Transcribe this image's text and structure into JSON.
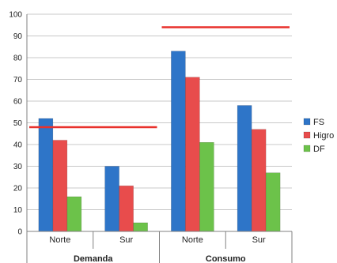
{
  "chart_data": {
    "type": "bar",
    "groups": [
      {
        "name": "Demanda",
        "categories": [
          "Norte",
          "Sur"
        ]
      },
      {
        "name": "Consumo",
        "categories": [
          "Norte",
          "Sur"
        ]
      }
    ],
    "categories": [
      "Norte",
      "Sur",
      "Norte",
      "Sur"
    ],
    "series": [
      {
        "name": "FS",
        "color": "#2e75c8",
        "values": [
          52,
          30,
          83,
          58
        ]
      },
      {
        "name": "Higro",
        "color": "#e84c4c",
        "values": [
          42,
          21,
          71,
          47
        ]
      },
      {
        "name": "DF",
        "color": "#6cc24a",
        "values": [
          16,
          4,
          41,
          27
        ]
      }
    ],
    "reference_lines": [
      {
        "group": "Demanda",
        "value": 48,
        "color": "#e8312c"
      },
      {
        "group": "Consumo",
        "value": 94,
        "color": "#e8312c"
      }
    ],
    "ylim": [
      0,
      100
    ],
    "yticks": [
      0,
      10,
      20,
      30,
      40,
      50,
      60,
      70,
      80,
      90,
      100
    ],
    "legend_position": "right",
    "grid": true
  }
}
